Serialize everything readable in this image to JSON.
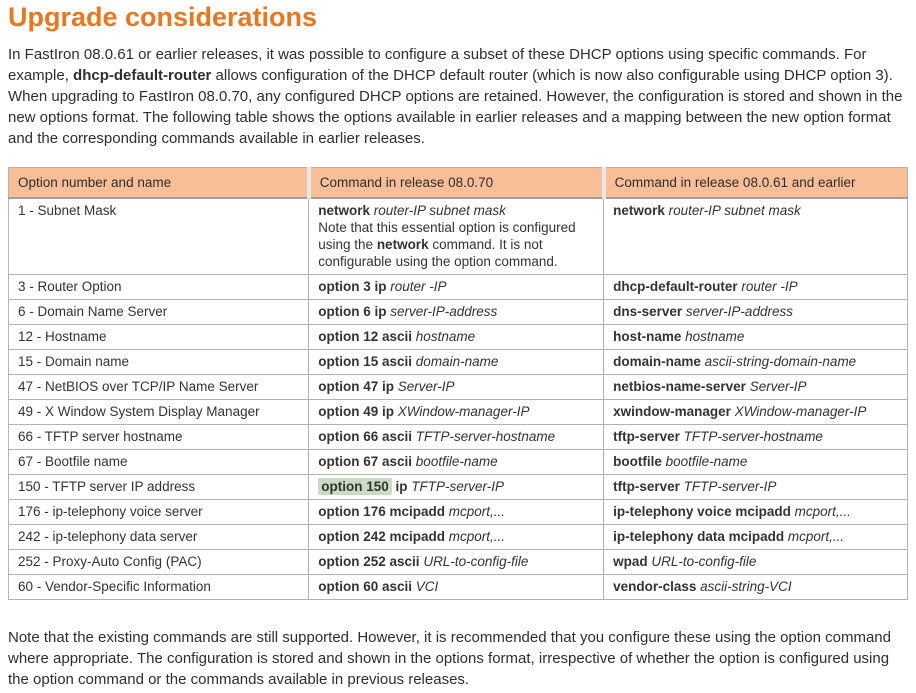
{
  "page": {
    "title": "Upgrade considerations",
    "intro_segments": [
      {
        "t": "In FastIron 08.0.61 or earlier releases, it was possible to configure a subset of these DHCP options using specific commands. For example, ",
        "f": "r"
      },
      {
        "t": "dhcp-default-router",
        "f": "b"
      },
      {
        "t": " allows configuration of the DHCP default router (which is now also configurable using DHCP option 3). When upgrading to FastIron 08.0.70, any configured DHCP options are retained. However, the configuration is stored and shown in the new options format. The following table shows the options available in earlier releases and a mapping between the new option format and the corresponding commands available in earlier releases.",
        "f": "r"
      }
    ],
    "footer_text": "Note that the existing commands are still supported. However, it is recommended that you configure these using the option command where appropriate. The configuration is stored and shown in the options format, irrespective of whether the option is configured using the option command or the commands available in previous releases."
  },
  "table": {
    "headers": [
      "Option number and name",
      "Command in release 08.0.70",
      "Command in release 08.0.61 and earlier"
    ],
    "rows": [
      {
        "option": "1 - Subnet Mask",
        "r70": [
          [
            {
              "t": "network",
              "f": "b"
            },
            {
              "t": " router-IP subnet mask",
              "f": "i"
            }
          ],
          [
            {
              "t": "Note that this essential option is configured using the ",
              "f": "r"
            },
            {
              "t": "network",
              "f": "b"
            },
            {
              "t": " command. It is not configurable using the option command.",
              "f": "r"
            }
          ]
        ],
        "r61": [
          [
            {
              "t": "network",
              "f": "b"
            },
            {
              "t": " router-IP subnet mask",
              "f": "i"
            }
          ]
        ]
      },
      {
        "option": "3 - Router Option",
        "r70": [
          [
            {
              "t": "option 3 ip",
              "f": "b"
            },
            {
              "t": " router -IP",
              "f": "i"
            }
          ]
        ],
        "r61": [
          [
            {
              "t": "dhcp-default-router",
              "f": "b"
            },
            {
              "t": " router -IP",
              "f": "i"
            }
          ]
        ]
      },
      {
        "option": "6 - Domain Name Server",
        "r70": [
          [
            {
              "t": "option 6 ip",
              "f": "b"
            },
            {
              "t": " server-IP-address",
              "f": "i"
            }
          ]
        ],
        "r61": [
          [
            {
              "t": "dns-server",
              "f": "b"
            },
            {
              "t": " server-IP-address",
              "f": "i"
            }
          ]
        ]
      },
      {
        "option": "12 - Hostname",
        "r70": [
          [
            {
              "t": "option 12 ascii",
              "f": "b"
            },
            {
              "t": " hostname",
              "f": "i"
            }
          ]
        ],
        "r61": [
          [
            {
              "t": "host-name",
              "f": "b"
            },
            {
              "t": " hostname",
              "f": "i"
            }
          ]
        ]
      },
      {
        "option": "15 - Domain name",
        "r70": [
          [
            {
              "t": "option 15 ascii",
              "f": "b"
            },
            {
              "t": " domain-name",
              "f": "i"
            }
          ]
        ],
        "r61": [
          [
            {
              "t": "domain-name",
              "f": "b"
            },
            {
              "t": " ascii-string-domain-name",
              "f": "i"
            }
          ]
        ]
      },
      {
        "option": "47 - NetBIOS over TCP/IP Name Server",
        "r70": [
          [
            {
              "t": "option 47 ip",
              "f": "b"
            },
            {
              "t": " Server-IP",
              "f": "i"
            }
          ]
        ],
        "r61": [
          [
            {
              "t": "netbios-name-server",
              "f": "b"
            },
            {
              "t": " Server-IP",
              "f": "i"
            }
          ]
        ]
      },
      {
        "option": "49 - X Window System Display Manager",
        "r70": [
          [
            {
              "t": "option 49 ip",
              "f": "b"
            },
            {
              "t": " XWindow-manager-IP",
              "f": "i"
            }
          ]
        ],
        "r61": [
          [
            {
              "t": "xwindow-manager",
              "f": "b"
            },
            {
              "t": " XWindow-manager-IP",
              "f": "i"
            }
          ]
        ]
      },
      {
        "option": "66 - TFTP server hostname",
        "r70": [
          [
            {
              "t": "option 66 ascii",
              "f": "b"
            },
            {
              "t": " TFTP-server-hostname",
              "f": "i"
            }
          ]
        ],
        "r61": [
          [
            {
              "t": "tftp-server",
              "f": "b"
            },
            {
              "t": " TFTP-server-hostname",
              "f": "i"
            }
          ]
        ]
      },
      {
        "option": "67 - Bootfile name",
        "r70": [
          [
            {
              "t": "option 67 ascii",
              "f": "b"
            },
            {
              "t": " bootfile-name",
              "f": "i"
            }
          ]
        ],
        "r61": [
          [
            {
              "t": "bootfile",
              "f": "b"
            },
            {
              "t": " bootfile-name",
              "f": "i"
            }
          ]
        ]
      },
      {
        "option": "150 - TFTP server IP address",
        "r70": [
          [
            {
              "t": "option 150",
              "f": "b",
              "hl": true
            },
            {
              "t": " ",
              "f": "r"
            },
            {
              "t": "ip",
              "f": "b"
            },
            {
              "t": " TFTP-server-IP",
              "f": "i"
            }
          ]
        ],
        "r61": [
          [
            {
              "t": "tftp-server",
              "f": "b"
            },
            {
              "t": " TFTP-server-IP",
              "f": "i"
            }
          ]
        ]
      },
      {
        "option": "176 - ip-telephony voice server",
        "r70": [
          [
            {
              "t": "option 176 mcipadd",
              "f": "b"
            },
            {
              "t": " mcport,...",
              "f": "i"
            }
          ]
        ],
        "r61": [
          [
            {
              "t": "ip-telephony voice mcipadd",
              "f": "b"
            },
            {
              "t": " mcport,...",
              "f": "i"
            }
          ]
        ]
      },
      {
        "option": "242 - ip-telephony data server",
        "r70": [
          [
            {
              "t": "option 242 mcipadd",
              "f": "b"
            },
            {
              "t": " mcport,...",
              "f": "i"
            }
          ]
        ],
        "r61": [
          [
            {
              "t": "ip-telephony data mcipadd",
              "f": "b"
            },
            {
              "t": " mcport,...",
              "f": "i"
            }
          ]
        ]
      },
      {
        "option": "252 - Proxy-Auto Config (PAC)",
        "r70": [
          [
            {
              "t": "option 252 ascii",
              "f": "b"
            },
            {
              "t": " URL-to-config-file",
              "f": "i"
            }
          ]
        ],
        "r61": [
          [
            {
              "t": "wpad",
              "f": "b"
            },
            {
              "t": " URL-to-config-file",
              "f": "i"
            }
          ]
        ]
      },
      {
        "option": "60 - Vendor-Specific Information",
        "r70": [
          [
            {
              "t": "option 60 ascii",
              "f": "b"
            },
            {
              "t": " VCI",
              "f": "i"
            }
          ]
        ],
        "r61": [
          [
            {
              "t": "vendor-class",
              "f": "b"
            },
            {
              "t": " ascii-string-VCI",
              "f": "i"
            }
          ]
        ]
      }
    ]
  },
  "colors": {
    "title": "#e87722",
    "table_header_bg": "#f8be98",
    "highlight": "#c9dcc3",
    "border": "#b2b2b2",
    "text": "#333333"
  }
}
